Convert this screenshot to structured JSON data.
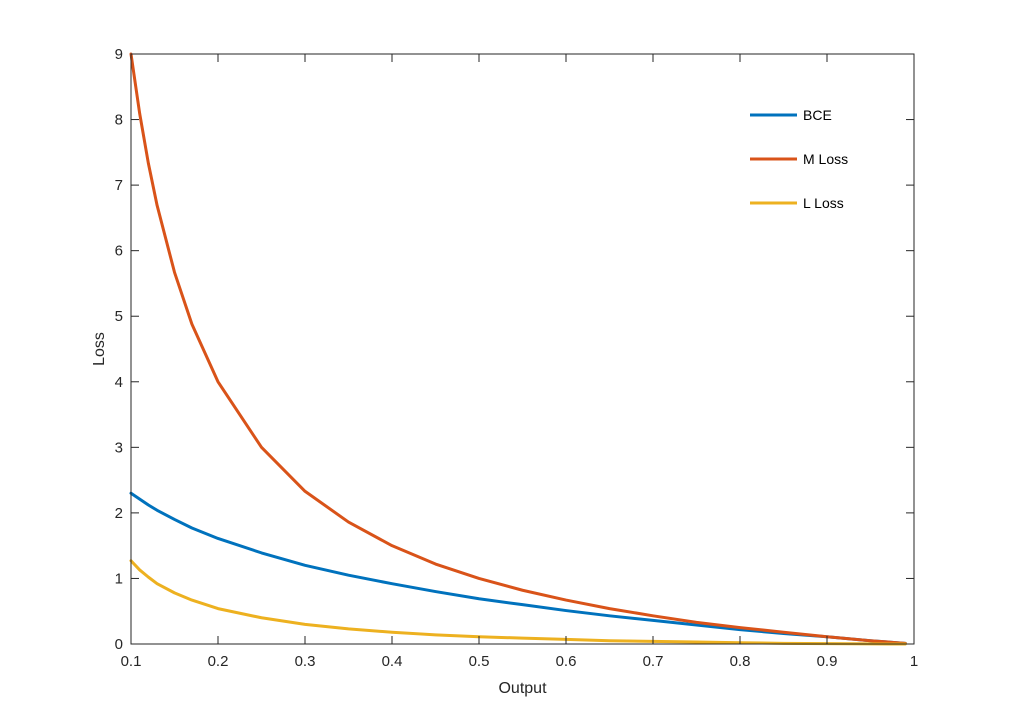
{
  "chart_data": {
    "type": "line",
    "title": "",
    "xlabel": "Output",
    "ylabel": "Loss",
    "xlim": [
      0.1,
      1
    ],
    "ylim": [
      0,
      9
    ],
    "xticks": [
      "0.1",
      "0.2",
      "0.3",
      "0.4",
      "0.5",
      "0.6",
      "0.7",
      "0.8",
      "0.9",
      "1"
    ],
    "yticks": [
      "0",
      "1",
      "2",
      "3",
      "4",
      "5",
      "6",
      "7",
      "8",
      "9"
    ],
    "grid": false,
    "legend_position": "top-right",
    "x": [
      0.1,
      0.11,
      0.12,
      0.13,
      0.15,
      0.17,
      0.2,
      0.25,
      0.3,
      0.35,
      0.4,
      0.45,
      0.5,
      0.55,
      0.6,
      0.65,
      0.7,
      0.75,
      0.8,
      0.85,
      0.9,
      0.95,
      0.99
    ],
    "series": [
      {
        "name": "BCE",
        "color": "#0072BD",
        "values": [
          2.3,
          2.21,
          2.12,
          2.04,
          1.9,
          1.77,
          1.61,
          1.39,
          1.2,
          1.05,
          0.92,
          0.8,
          0.69,
          0.6,
          0.51,
          0.43,
          0.36,
          0.29,
          0.22,
          0.16,
          0.11,
          0.05,
          0.01
        ]
      },
      {
        "name": "M Loss",
        "color": "#D95319",
        "values": [
          9.0,
          8.09,
          7.33,
          6.69,
          5.67,
          4.88,
          4.0,
          3.0,
          2.33,
          1.86,
          1.5,
          1.22,
          1.0,
          0.82,
          0.67,
          0.54,
          0.43,
          0.33,
          0.25,
          0.18,
          0.11,
          0.05,
          0.01
        ]
      },
      {
        "name": "L Loss",
        "color": "#EDB120",
        "values": [
          1.27,
          1.13,
          1.02,
          0.92,
          0.78,
          0.67,
          0.54,
          0.4,
          0.3,
          0.23,
          0.18,
          0.14,
          0.11,
          0.09,
          0.07,
          0.05,
          0.04,
          0.03,
          0.02,
          0.01,
          0.005,
          0.002,
          0.0
        ]
      }
    ]
  }
}
